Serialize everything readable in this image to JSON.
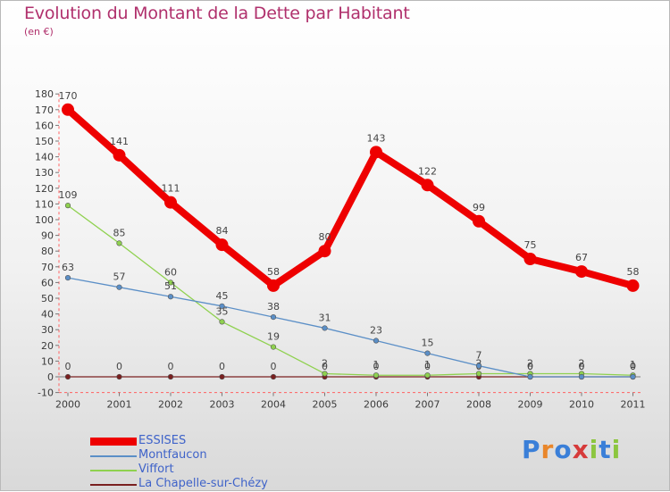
{
  "title": "Evolution du Montant de la Dette par Habitant",
  "subtitle": "(en €)",
  "brand": {
    "letters": [
      "P",
      "r",
      "o",
      "x",
      "i",
      "t",
      "i"
    ],
    "colors": [
      "#3a7fd8",
      "#e9862a",
      "#3a7fd8",
      "#d63a3a",
      "#8cc63f",
      "#3a7fd8",
      "#8cc63f"
    ]
  },
  "chart_data": {
    "type": "line",
    "x": [
      "2000",
      "2001",
      "2002",
      "2003",
      "2004",
      "2005",
      "2006",
      "2007",
      "2008",
      "2009",
      "2010",
      "2011"
    ],
    "ylim": [
      -10,
      180
    ],
    "yticks": [
      "-10",
      "0",
      "10",
      "20",
      "30",
      "40",
      "50",
      "60",
      "70",
      "80",
      "90",
      "100",
      "110",
      "120",
      "130",
      "140",
      "150",
      "160",
      "170",
      "180"
    ],
    "grid": false,
    "legend_position": "bottom-left",
    "series": [
      {
        "name": "ESSISES",
        "color": "#ee0000",
        "values": [
          170,
          141,
          111,
          84,
          58,
          80,
          143,
          122,
          99,
          75,
          67,
          58
        ],
        "labels": [
          "170",
          "141",
          "111",
          "84",
          "58",
          "80",
          "143",
          "122",
          "99",
          "75",
          "67",
          "58"
        ]
      },
      {
        "name": "Montfaucon",
        "color": "#5b8fc7",
        "values": [
          63,
          57,
          51,
          45,
          38,
          31,
          23,
          15,
          7,
          0,
          0,
          0
        ],
        "labels": [
          "63",
          "57",
          "51",
          "45",
          "38",
          "31",
          "23",
          "15",
          "7",
          "0",
          "0",
          "0"
        ]
      },
      {
        "name": "Viffort",
        "color": "#8fd14f",
        "values": [
          109,
          85,
          60,
          35,
          19,
          2,
          1,
          1,
          2,
          2,
          2,
          1
        ],
        "labels": [
          "109",
          "85",
          "60",
          "35",
          "19",
          "2",
          "1",
          "1",
          "2",
          "2",
          "2",
          "1"
        ]
      },
      {
        "name": "La Chapelle-sur-Chézy",
        "color": "#7a2020",
        "values": [
          0,
          0,
          0,
          0,
          0,
          0,
          0,
          0,
          0,
          0,
          0,
          0
        ],
        "labels": [
          "0",
          "0",
          "0",
          "0",
          "0",
          "0",
          "0",
          "0",
          "0",
          "0",
          "0",
          "0"
        ]
      }
    ]
  }
}
